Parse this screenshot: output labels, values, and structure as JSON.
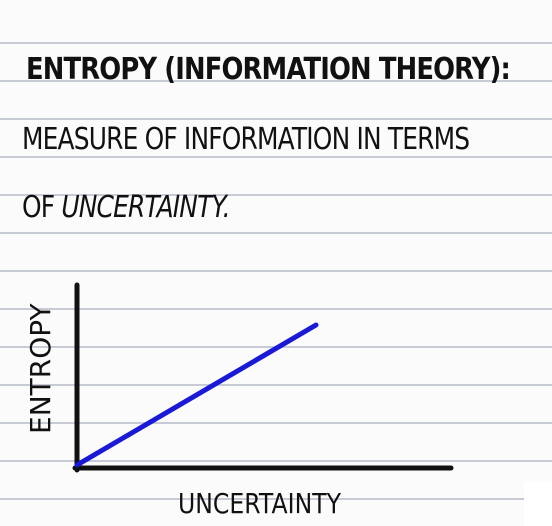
{
  "heading": "ENTROPY (INFORMATION THEORY):",
  "definition": {
    "line1": "MEASURE OF INFORMATION IN TERMS",
    "line2_prefix": "OF ",
    "line2_emphasis": "UNCERTAINTY."
  },
  "graph": {
    "y_axis_label": "ENTROPY",
    "x_axis_label": "UNCERTAINTY",
    "line_color": "#1a1ad6",
    "axis_color": "#111111"
  }
}
